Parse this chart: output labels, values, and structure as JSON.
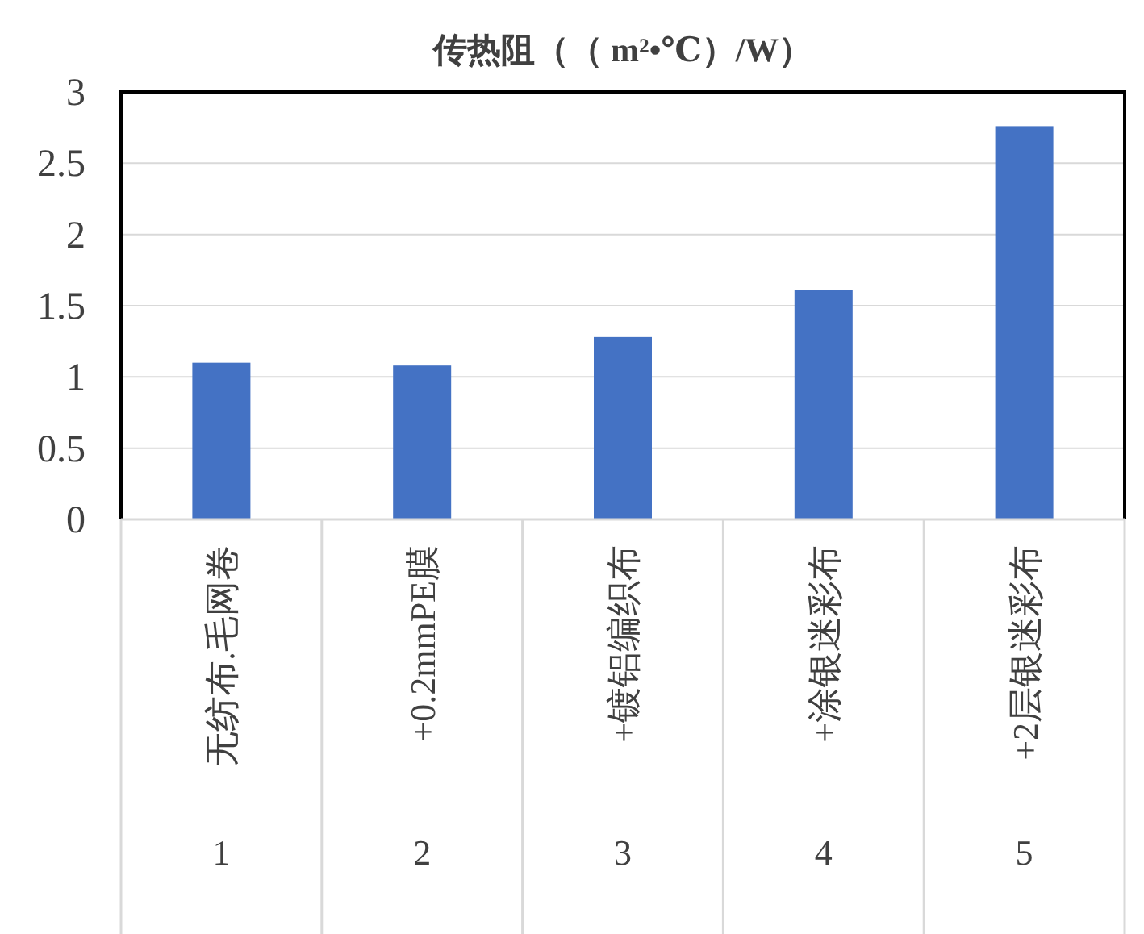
{
  "chart_data": {
    "type": "bar",
    "title": "传热阻（（ m²•℃）/W）",
    "categories": [
      "无纺布.毛网卷",
      "+0.2mmPE膜",
      "+镀铝编织布",
      "+涂银迷彩布",
      "+2层银迷彩布"
    ],
    "values": [
      1.1,
      1.08,
      1.28,
      1.61,
      2.76
    ],
    "color": "#4472c4",
    "ylim": [
      0,
      3
    ],
    "yticks": [
      0,
      0.5,
      1,
      1.5,
      2,
      2.5,
      3
    ],
    "grid": "y",
    "annotations": [
      "1",
      "2",
      "3",
      "4",
      "5"
    ]
  }
}
